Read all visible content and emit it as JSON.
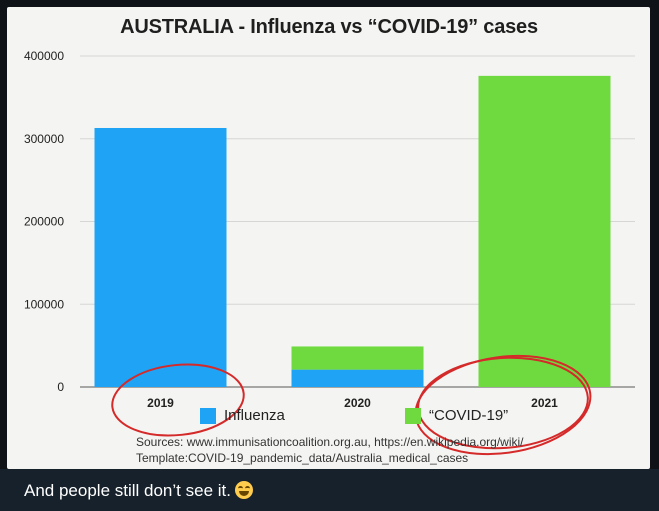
{
  "caption": {
    "text": "And people still don’t see it.",
    "emoji_icon": "laughing-face-icon"
  },
  "chart_data": {
    "type": "bar",
    "stacked": true,
    "title": "AUSTRALIA - Influenza vs “COVID-19” cases",
    "categories": [
      "2019",
      "2020",
      "2021"
    ],
    "series": [
      {
        "name": "Influenza",
        "color": "#1fa3f5",
        "values": [
          313000,
          21000,
          0
        ]
      },
      {
        "name": "“COVID-19”",
        "color": "#6fda3f",
        "values": [
          0,
          28000,
          376000
        ]
      }
    ],
    "yticks": [
      "0",
      "100000",
      "200000",
      "300000",
      "400000"
    ],
    "ylim": [
      0,
      400000
    ],
    "grid": "horizontal",
    "legend_position": "bottom",
    "sources": [
      "Sources: www.immunisationcoalition.org.au, https://en.wikipedia.org/wiki/",
      "Template:COVID-19_pandemic_data/Australia_medical_cases"
    ],
    "annotations": [
      "red hand-drawn circle around 2019",
      "red hand-drawn circle around 2021"
    ]
  }
}
